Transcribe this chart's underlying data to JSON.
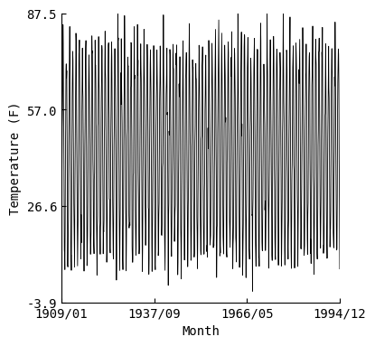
{
  "title": "",
  "xlabel": "Month",
  "ylabel": "Temperature (F)",
  "ylim": [
    -3.9,
    87.5
  ],
  "yticks": [
    -3.9,
    26.6,
    57.0,
    87.5
  ],
  "ytick_labels": [
    "-3.9",
    "26.6",
    "57.0",
    "87.5"
  ],
  "start_year": 1909,
  "start_month": 1,
  "end_year": 1994,
  "end_month": 12,
  "xtick_dates": [
    "1909/01",
    "1937/09",
    "1966/05",
    "1994/12"
  ],
  "xtick_positions": [
    0,
    344,
    688,
    1031
  ],
  "line_color": "#000000",
  "line_width": 0.6,
  "bg_color": "#ffffff",
  "font_family": "monospace",
  "font_size": 10
}
